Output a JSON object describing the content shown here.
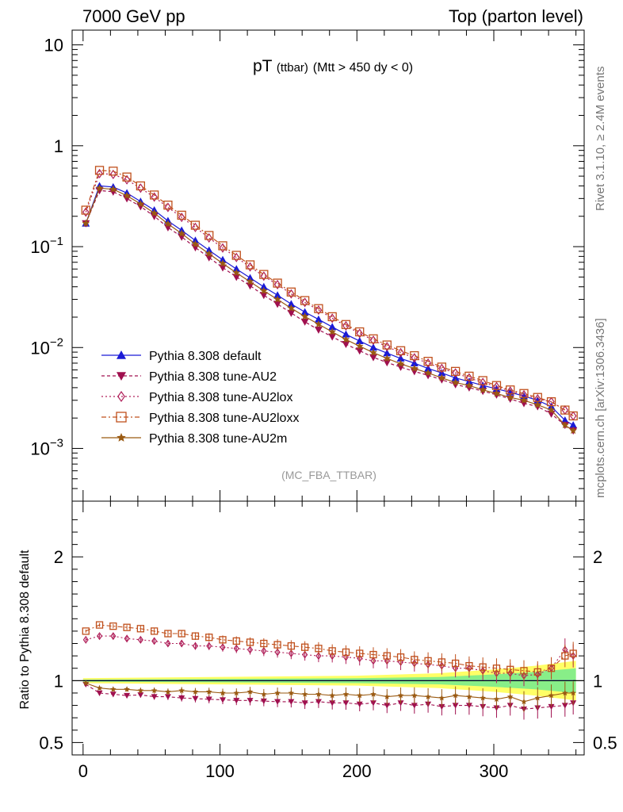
{
  "header": {
    "left": "7000 GeV pp",
    "right": "Top (parton level)"
  },
  "side_labels": {
    "rivet": "Rivet 3.1.10, ≥ 2.4M events",
    "mcplots": "mcplots.cern.ch [arXiv:1306.3436]"
  },
  "colors": {
    "default": "#1a1ad6",
    "au2": "#a0104f",
    "au2lox": "#b0205a",
    "au2loxx": "#c0501c",
    "au2m": "#9a5a12",
    "band_yellow": "#ffff66",
    "band_green": "#88ee88"
  },
  "chart_data": [
    {
      "type": "line",
      "panel": "main",
      "title": "pT (ttbar) (Mtt > 450 dy < 0)",
      "title_main": "pT",
      "title_sub": "(ttbar)",
      "title_rest": "(Mtt > 450 dy < 0)",
      "watermark": "(MC_FBA_TTBAR)",
      "xlabel": "",
      "ylabel": "",
      "xlim": [
        -8,
        366
      ],
      "ylim": [
        0.0003,
        14
      ],
      "yscale": "log",
      "y_ticklabels": [
        {
          "v": 10,
          "text": "10"
        },
        {
          "v": 1,
          "text": "1"
        },
        {
          "v": 0.1,
          "base": "10",
          "exp": "−1"
        },
        {
          "v": 0.01,
          "base": "10",
          "exp": "−2"
        },
        {
          "v": 0.001,
          "base": "10",
          "exp": "−3"
        }
      ],
      "legend_position": "lower-left",
      "x": [
        2,
        12,
        22,
        32,
        42,
        52,
        62,
        72,
        82,
        92,
        102,
        112,
        122,
        132,
        142,
        152,
        162,
        172,
        182,
        192,
        202,
        212,
        222,
        232,
        242,
        252,
        262,
        272,
        282,
        292,
        302,
        312,
        322,
        332,
        342,
        352,
        358
      ],
      "series": [
        {
          "name": "Pythia 8.308 default",
          "marker": "triangle-up",
          "dash": "",
          "color_key": "default",
          "values": [
            0.17,
            0.4,
            0.39,
            0.34,
            0.28,
            0.23,
            0.18,
            0.145,
            0.115,
            0.092,
            0.074,
            0.06,
            0.049,
            0.04,
            0.033,
            0.027,
            0.0225,
            0.019,
            0.016,
            0.0135,
            0.0116,
            0.01,
            0.0088,
            0.0078,
            0.007,
            0.0062,
            0.0056,
            0.005,
            0.0046,
            0.0042,
            0.0039,
            0.0036,
            0.0033,
            0.003,
            0.0026,
            0.0019,
            0.0017
          ]
        },
        {
          "name": "Pythia 8.308 tune-AU2",
          "marker": "triangle-down",
          "dash": "4,3",
          "color_key": "au2",
          "values": [
            0.17,
            0.36,
            0.35,
            0.3,
            0.25,
            0.2,
            0.155,
            0.125,
            0.098,
            0.078,
            0.062,
            0.05,
            0.041,
            0.033,
            0.027,
            0.022,
            0.018,
            0.015,
            0.0128,
            0.0108,
            0.0093,
            0.008,
            0.0071,
            0.0064,
            0.0058,
            0.0053,
            0.0048,
            0.0043,
            0.004,
            0.0037,
            0.0034,
            0.0031,
            0.0028,
            0.0026,
            0.0022,
            0.0017,
            0.0015
          ]
        },
        {
          "name": "Pythia 8.308 tune-AU2lox",
          "marker": "diamond-open",
          "dash": "2,3",
          "color_key": "au2lox",
          "values": [
            0.22,
            0.53,
            0.52,
            0.46,
            0.38,
            0.31,
            0.245,
            0.195,
            0.155,
            0.122,
            0.097,
            0.078,
            0.063,
            0.051,
            0.042,
            0.034,
            0.028,
            0.0235,
            0.0195,
            0.0164,
            0.0138,
            0.0118,
            0.0102,
            0.0089,
            0.0079,
            0.007,
            0.0062,
            0.0056,
            0.005,
            0.0045,
            0.0041,
            0.0037,
            0.0034,
            0.0031,
            0.0029,
            0.0024,
            0.0021
          ]
        },
        {
          "name": "Pythia 8.308 tune-AU2loxx",
          "marker": "square-open",
          "dash": "6,3,2,3",
          "color_key": "au2loxx",
          "values": [
            0.23,
            0.57,
            0.56,
            0.49,
            0.4,
            0.325,
            0.258,
            0.205,
            0.163,
            0.129,
            0.102,
            0.082,
            0.066,
            0.053,
            0.0435,
            0.0355,
            0.0292,
            0.0243,
            0.0202,
            0.0169,
            0.0143,
            0.0122,
            0.0106,
            0.0093,
            0.0083,
            0.0073,
            0.0064,
            0.0058,
            0.0052,
            0.0047,
            0.0042,
            0.0038,
            0.0035,
            0.0032,
            0.0029,
            0.0024,
            0.0021
          ]
        },
        {
          "name": "Pythia 8.308 tune-AU2m",
          "marker": "star",
          "dash": "",
          "color_key": "au2m",
          "values": [
            0.17,
            0.38,
            0.37,
            0.32,
            0.265,
            0.215,
            0.168,
            0.135,
            0.106,
            0.085,
            0.068,
            0.055,
            0.045,
            0.0365,
            0.03,
            0.0245,
            0.0203,
            0.017,
            0.0143,
            0.012,
            0.0103,
            0.0089,
            0.0078,
            0.0069,
            0.0062,
            0.0056,
            0.005,
            0.0045,
            0.0042,
            0.0038,
            0.0035,
            0.0032,
            0.003,
            0.0027,
            0.0024,
            0.0017,
            0.0015
          ]
        }
      ]
    },
    {
      "type": "line",
      "panel": "ratio",
      "ylabel": "Ratio to Pythia 8.308 default",
      "xlim": [
        -8,
        366
      ],
      "ylim": [
        0.4,
        2.45
      ],
      "y_ticklabels": [
        {
          "v": 2,
          "text": "2"
        },
        {
          "v": 1,
          "text": "1"
        },
        {
          "v": 0.5,
          "text": "0.5"
        }
      ],
      "x_ticklabels": [
        {
          "v": 0,
          "text": "0"
        },
        {
          "v": 100,
          "text": "100"
        },
        {
          "v": 200,
          "text": "200"
        },
        {
          "v": 300,
          "text": "300"
        }
      ],
      "x": [
        2,
        12,
        22,
        32,
        42,
        52,
        62,
        72,
        82,
        92,
        102,
        112,
        122,
        132,
        142,
        152,
        162,
        172,
        182,
        192,
        202,
        212,
        222,
        232,
        242,
        252,
        262,
        272,
        282,
        292,
        302,
        312,
        322,
        332,
        342,
        352,
        358
      ],
      "band": {
        "x": [
          0,
          200,
          260,
          300,
          330,
          360
        ],
        "yellow_half": [
          0.02,
          0.04,
          0.06,
          0.09,
          0.12,
          0.16
        ],
        "green_half": [
          0.008,
          0.02,
          0.03,
          0.05,
          0.07,
          0.1
        ]
      },
      "series": [
        {
          "name": "Pythia 8.308 tune-AU2",
          "color_key": "au2",
          "marker": "triangle-down",
          "dash": "4,3",
          "values": [
            0.97,
            0.9,
            0.89,
            0.88,
            0.885,
            0.87,
            0.87,
            0.86,
            0.855,
            0.85,
            0.845,
            0.84,
            0.84,
            0.835,
            0.83,
            0.83,
            0.82,
            0.83,
            0.82,
            0.82,
            0.81,
            0.82,
            0.8,
            0.82,
            0.8,
            0.81,
            0.79,
            0.8,
            0.8,
            0.79,
            0.78,
            0.8,
            0.77,
            0.78,
            0.79,
            0.8,
            0.82
          ]
        },
        {
          "name": "Pythia 8.308 tune-AU2lox",
          "color_key": "au2lox",
          "marker": "diamond-open",
          "dash": "2,3",
          "values": [
            1.33,
            1.36,
            1.36,
            1.34,
            1.33,
            1.32,
            1.3,
            1.3,
            1.28,
            1.28,
            1.27,
            1.26,
            1.25,
            1.24,
            1.23,
            1.22,
            1.21,
            1.2,
            1.2,
            1.19,
            1.18,
            1.16,
            1.16,
            1.15,
            1.14,
            1.13,
            1.12,
            1.1,
            1.1,
            1.08,
            1.06,
            1.06,
            1.04,
            1.05,
            1.1,
            1.25,
            1.2
          ]
        },
        {
          "name": "Pythia 8.308 tune-AU2loxx",
          "color_key": "au2loxx",
          "marker": "square-open",
          "dash": "6,3,2,3",
          "values": [
            1.4,
            1.45,
            1.44,
            1.43,
            1.42,
            1.4,
            1.38,
            1.38,
            1.36,
            1.35,
            1.33,
            1.32,
            1.31,
            1.3,
            1.29,
            1.28,
            1.27,
            1.26,
            1.24,
            1.23,
            1.22,
            1.21,
            1.2,
            1.19,
            1.17,
            1.16,
            1.15,
            1.14,
            1.12,
            1.11,
            1.1,
            1.09,
            1.08,
            1.07,
            1.1,
            1.2,
            1.22
          ]
        },
        {
          "name": "Pythia 8.308 tune-AU2m",
          "color_key": "au2m",
          "marker": "star",
          "dash": "",
          "values": [
            0.98,
            0.94,
            0.93,
            0.93,
            0.92,
            0.92,
            0.91,
            0.92,
            0.91,
            0.91,
            0.9,
            0.9,
            0.91,
            0.89,
            0.9,
            0.9,
            0.89,
            0.89,
            0.88,
            0.89,
            0.88,
            0.89,
            0.87,
            0.88,
            0.88,
            0.87,
            0.86,
            0.88,
            0.87,
            0.86,
            0.85,
            0.87,
            0.83,
            0.86,
            0.88,
            0.9,
            0.9
          ]
        }
      ]
    }
  ]
}
